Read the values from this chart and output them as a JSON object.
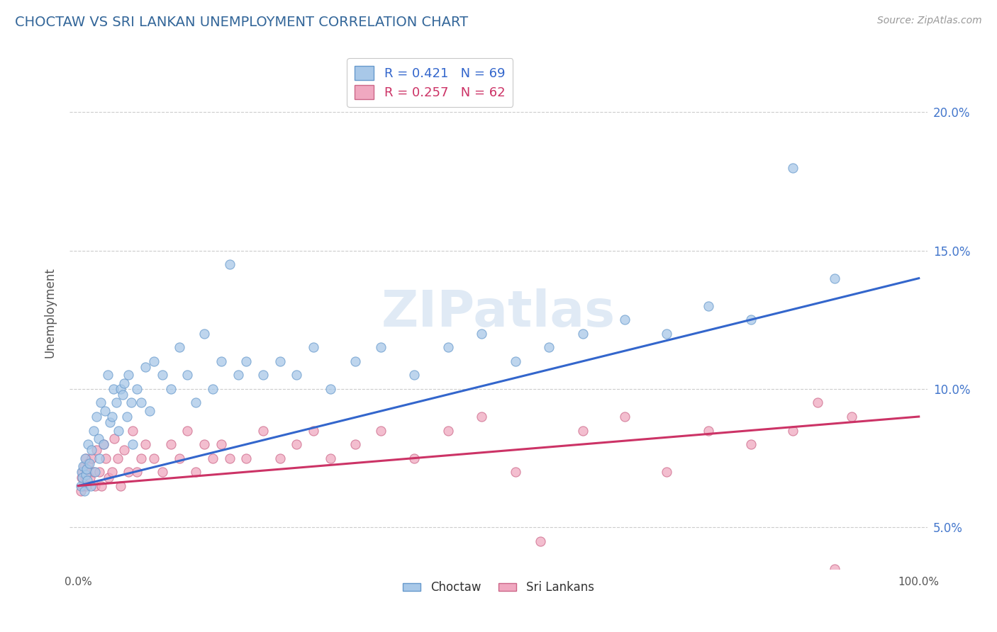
{
  "title": "CHOCTAW VS SRI LANKAN UNEMPLOYMENT CORRELATION CHART",
  "source": "Source: ZipAtlas.com",
  "ylabel": "Unemployment",
  "xlim": [
    -1,
    101
  ],
  "ylim": [
    3.5,
    22.0
  ],
  "ytick_values": [
    5,
    10,
    15,
    20
  ],
  "choctaw_color": "#a8c8e8",
  "choctaw_edge_color": "#6699cc",
  "srilanka_color": "#f0a8c0",
  "srilanka_edge_color": "#cc6688",
  "choctaw_line_color": "#3366cc",
  "srilanka_line_color": "#cc3366",
  "watermark": "ZIPatlas",
  "choctaw_line_x0": 0,
  "choctaw_line_y0": 6.5,
  "choctaw_line_x1": 100,
  "choctaw_line_y1": 14.0,
  "srilanka_line_x0": 0,
  "srilanka_line_y0": 6.5,
  "srilanka_line_x1": 100,
  "srilanka_line_y1": 9.0,
  "choctaw_x": [
    0.3,
    0.4,
    0.5,
    0.6,
    0.7,
    0.8,
    0.9,
    1.0,
    1.1,
    1.2,
    1.3,
    1.5,
    1.6,
    1.8,
    2.0,
    2.2,
    2.4,
    2.5,
    2.7,
    3.0,
    3.2,
    3.5,
    3.8,
    4.0,
    4.2,
    4.5,
    4.8,
    5.0,
    5.3,
    5.5,
    5.8,
    6.0,
    6.3,
    6.5,
    7.0,
    7.5,
    8.0,
    8.5,
    9.0,
    10.0,
    11.0,
    12.0,
    13.0,
    14.0,
    15.0,
    16.0,
    17.0,
    18.0,
    19.0,
    20.0,
    22.0,
    24.0,
    26.0,
    28.0,
    30.0,
    33.0,
    36.0,
    40.0,
    44.0,
    48.0,
    52.0,
    56.0,
    60.0,
    65.0,
    70.0,
    75.0,
    80.0,
    85.0,
    90.0
  ],
  "choctaw_y": [
    6.5,
    7.0,
    6.8,
    7.2,
    6.3,
    7.5,
    6.9,
    7.1,
    6.7,
    8.0,
    7.3,
    6.5,
    7.8,
    8.5,
    7.0,
    9.0,
    8.2,
    7.5,
    9.5,
    8.0,
    9.2,
    10.5,
    8.8,
    9.0,
    10.0,
    9.5,
    8.5,
    10.0,
    9.8,
    10.2,
    9.0,
    10.5,
    9.5,
    8.0,
    10.0,
    9.5,
    10.8,
    9.2,
    11.0,
    10.5,
    10.0,
    11.5,
    10.5,
    9.5,
    12.0,
    10.0,
    11.0,
    14.5,
    10.5,
    11.0,
    10.5,
    11.0,
    10.5,
    11.5,
    10.0,
    11.0,
    11.5,
    10.5,
    11.5,
    12.0,
    11.0,
    11.5,
    12.0,
    12.5,
    12.0,
    13.0,
    12.5,
    18.0,
    14.0
  ],
  "srilanka_x": [
    0.3,
    0.4,
    0.5,
    0.6,
    0.7,
    0.8,
    0.9,
    1.0,
    1.1,
    1.2,
    1.4,
    1.6,
    1.8,
    2.0,
    2.2,
    2.5,
    2.8,
    3.0,
    3.3,
    3.6,
    4.0,
    4.3,
    4.7,
    5.0,
    5.5,
    6.0,
    6.5,
    7.0,
    7.5,
    8.0,
    9.0,
    10.0,
    11.0,
    12.0,
    13.0,
    14.0,
    15.0,
    16.0,
    17.0,
    18.0,
    20.0,
    22.0,
    24.0,
    26.0,
    28.0,
    30.0,
    33.0,
    36.0,
    40.0,
    44.0,
    48.0,
    52.0,
    55.0,
    60.0,
    65.0,
    70.0,
    75.0,
    80.0,
    85.0,
    88.0,
    90.0,
    92.0
  ],
  "srilanka_y": [
    6.3,
    6.8,
    7.0,
    6.5,
    7.2,
    6.8,
    7.5,
    6.5,
    7.0,
    7.3,
    6.8,
    7.5,
    7.0,
    6.5,
    7.8,
    7.0,
    6.5,
    8.0,
    7.5,
    6.8,
    7.0,
    8.2,
    7.5,
    6.5,
    7.8,
    7.0,
    8.5,
    7.0,
    7.5,
    8.0,
    7.5,
    7.0,
    8.0,
    7.5,
    8.5,
    7.0,
    8.0,
    7.5,
    8.0,
    7.5,
    7.5,
    8.5,
    7.5,
    8.0,
    8.5,
    7.5,
    8.0,
    8.5,
    7.5,
    8.5,
    9.0,
    7.0,
    4.5,
    8.5,
    9.0,
    7.0,
    8.5,
    8.0,
    8.5,
    9.5,
    3.5,
    9.0
  ]
}
